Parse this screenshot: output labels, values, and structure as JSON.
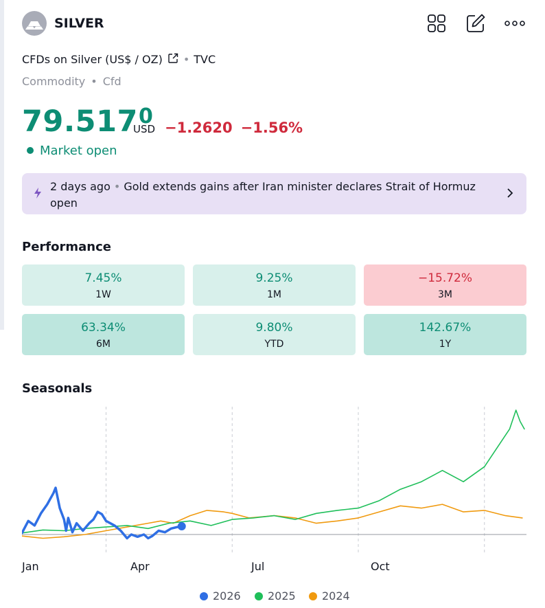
{
  "header": {
    "symbol": "SILVER",
    "logo_icon": "silver-bars-logo",
    "actions": [
      "grid-icon",
      "edit-icon",
      "more-icon"
    ]
  },
  "instrument": {
    "name": "CFDs on Silver (US$ / OZ)",
    "exchange": "TVC",
    "tags": [
      "Commodity",
      "Cfd"
    ]
  },
  "quote": {
    "price_main": "79.517",
    "price_sup": "0",
    "currency": "USD",
    "change_abs": "−1.2620",
    "change_pct": "−1.56%",
    "status": "Market open"
  },
  "news": {
    "age": "2 days ago",
    "headline": "Gold extends gains after Iran minister declares Strait of Hormuz open"
  },
  "performance": {
    "title": "Performance",
    "cells": [
      {
        "value": "7.45%",
        "label": "1W",
        "tone": "light-green"
      },
      {
        "value": "9.25%",
        "label": "1M",
        "tone": "light-green"
      },
      {
        "value": "−15.72%",
        "label": "3M",
        "tone": "red"
      },
      {
        "value": "63.34%",
        "label": "6M",
        "tone": "green"
      },
      {
        "value": "9.80%",
        "label": "YTD",
        "tone": "light-green"
      },
      {
        "value": "142.67%",
        "label": "1Y",
        "tone": "green"
      }
    ]
  },
  "colors": {
    "positive": "#0d8d74",
    "negative": "#cf2a3c",
    "light_green_bg": "#d8f0eb",
    "green_bg": "#bde6de",
    "red_bg": "#fbccd1",
    "news_bg": "#e8e0f5",
    "accent_purple": "#7e57c2"
  },
  "chart_data": {
    "type": "line",
    "title": "Seasonals",
    "xlabel": "",
    "ylabel": "",
    "x_unit": "month of year (0 = Jan 1, 12 = Dec 31)",
    "y_unit": "% change from Jan 1 (estimated)",
    "xlim": [
      0,
      12
    ],
    "ylim": [
      -10,
      165
    ],
    "x_ticks": [
      {
        "label": "Jan",
        "x": 0.25
      },
      {
        "label": "Apr",
        "x": 3.0
      },
      {
        "label": "Jul",
        "x": 6.0
      },
      {
        "label": "Oct",
        "x": 9.0
      }
    ],
    "gridlines_x": [
      2,
      5,
      8,
      11
    ],
    "legend_position": "bottom",
    "series": [
      {
        "name": "2026",
        "color": "#2f6fe4",
        "x": [
          0,
          0.15,
          0.3,
          0.45,
          0.6,
          0.75,
          0.8,
          0.9,
          1.0,
          1.05,
          1.1,
          1.2,
          1.3,
          1.45,
          1.6,
          1.7,
          1.8,
          1.9,
          2.0,
          2.1,
          2.2,
          2.35,
          2.5,
          2.6,
          2.75,
          2.9,
          3.0,
          3.1,
          3.25,
          3.4,
          3.55,
          3.7,
          3.8
        ],
        "y": [
          2,
          18,
          12,
          28,
          40,
          55,
          62,
          35,
          20,
          5,
          22,
          3,
          15,
          5,
          15,
          20,
          30,
          27,
          18,
          15,
          12,
          5,
          -5,
          0,
          -3,
          0,
          -5,
          -2,
          5,
          3,
          8,
          10,
          11
        ]
      },
      {
        "name": "2025",
        "color": "#1fbf5a",
        "x": [
          0,
          0.5,
          1.0,
          1.5,
          2.0,
          2.5,
          3.0,
          3.5,
          4.0,
          4.5,
          5.0,
          5.5,
          6.0,
          6.5,
          7.0,
          7.5,
          8.0,
          8.5,
          9.0,
          9.5,
          10.0,
          10.5,
          11.0,
          11.3,
          11.6,
          11.75,
          11.85,
          11.95
        ],
        "y": [
          2,
          6,
          5,
          8,
          10,
          12,
          8,
          15,
          18,
          12,
          20,
          22,
          25,
          20,
          28,
          32,
          35,
          45,
          60,
          70,
          85,
          70,
          90,
          115,
          140,
          165,
          150,
          140
        ]
      },
      {
        "name": "2024",
        "color": "#f09a0f",
        "x": [
          0,
          0.5,
          1.0,
          1.5,
          2.0,
          2.5,
          3.0,
          3.3,
          3.6,
          4.0,
          4.4,
          4.8,
          5.0,
          5.4,
          6.0,
          6.5,
          7.0,
          7.5,
          8.0,
          8.5,
          9.0,
          9.5,
          10.0,
          10.5,
          11.0,
          11.5,
          11.9
        ],
        "y": [
          -2,
          -5,
          -3,
          0,
          5,
          10,
          15,
          18,
          15,
          25,
          32,
          30,
          28,
          22,
          25,
          22,
          15,
          18,
          22,
          30,
          38,
          35,
          40,
          30,
          32,
          25,
          22
        ]
      }
    ]
  }
}
